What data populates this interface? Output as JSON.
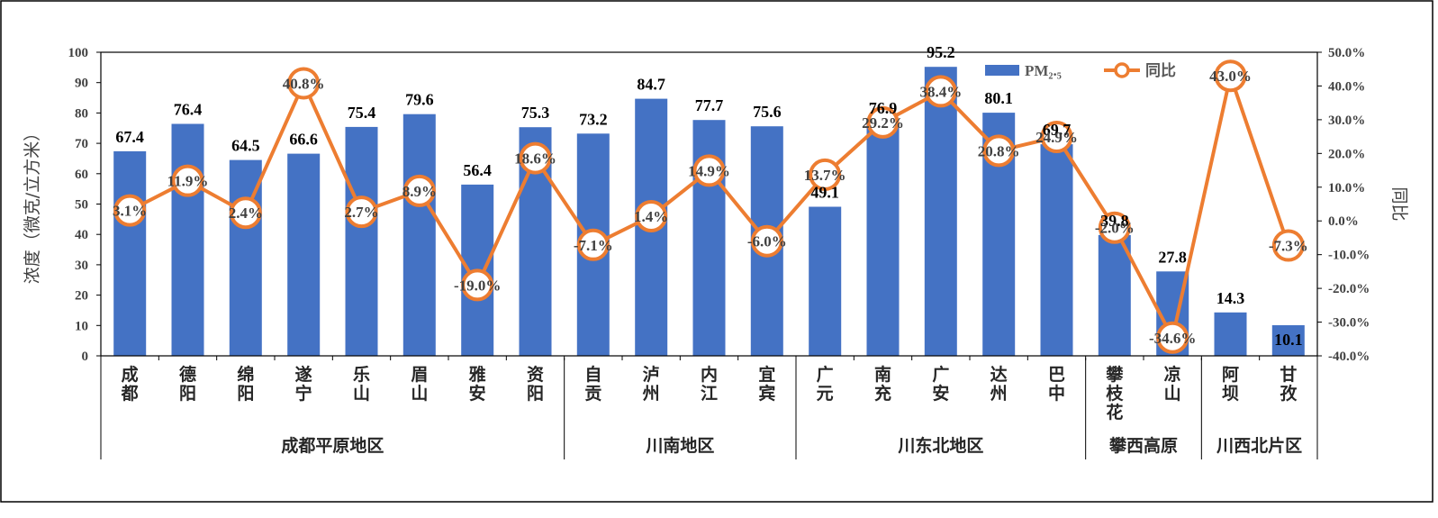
{
  "chart_data": {
    "type": "bar",
    "ylabel": "浓度（微克/立方米）",
    "y2label": "同比",
    "ylim": [
      0,
      100
    ],
    "yticks": [
      "0",
      "10",
      "20",
      "30",
      "40",
      "50",
      "60",
      "70",
      "80",
      "90",
      "100"
    ],
    "y2lim": [
      -40,
      50
    ],
    "y2ticks": [
      "-40.0%",
      "-30.0%",
      "-20.0%",
      "-10.0%",
      "0.0%",
      "10.0%",
      "20.0%",
      "30.0%",
      "40.0%",
      "50.0%"
    ],
    "categories": [
      "成都",
      "德阳",
      "绵阳",
      "遂宁",
      "乐山",
      "眉山",
      "雅安",
      "资阳",
      "自贡",
      "泸州",
      "内江",
      "宜宾",
      "广元",
      "南充",
      "广安",
      "达州",
      "巴中",
      "攀枝花",
      "凉山",
      "阿坝",
      "甘孜"
    ],
    "groups": [
      {
        "name": "成都平原地区",
        "count": 8
      },
      {
        "name": "川南地区",
        "count": 4
      },
      {
        "name": "川东北地区",
        "count": 5
      },
      {
        "name": "攀西高原",
        "count": 2
      },
      {
        "name": "川西北片区",
        "count": 2
      }
    ],
    "series": [
      {
        "name": "PM₂.₅",
        "type": "bar",
        "color": "#4472C4",
        "values": [
          67.4,
          76.4,
          64.5,
          66.6,
          75.4,
          79.6,
          56.4,
          75.3,
          73.2,
          84.7,
          77.7,
          75.6,
          49.1,
          76.9,
          95.2,
          80.1,
          69.7,
          39.8,
          27.8,
          14.3,
          10.1
        ],
        "labels": [
          "67.4",
          "76.4",
          "64.5",
          "66.6",
          "75.4",
          "79.6",
          "56.4",
          "75.3",
          "73.2",
          "84.7",
          "77.7",
          "75.6",
          "49.1",
          "76.9",
          "95.2",
          "80.1",
          "69.7",
          "39.8",
          "27.8",
          "14.3",
          "10.1"
        ]
      },
      {
        "name": "同比",
        "type": "line",
        "axis": "right",
        "color": "#ED7D31",
        "values": [
          3.1,
          11.9,
          2.4,
          40.8,
          2.7,
          8.9,
          -19.0,
          18.6,
          -7.1,
          1.4,
          14.9,
          -6.0,
          13.7,
          29.2,
          38.4,
          20.8,
          24.9,
          -2.0,
          -34.6,
          43.0,
          -7.3
        ],
        "labels": [
          "3.1%",
          "11.9%",
          "2.4%",
          "40.8%",
          "2.7%",
          "8.9%",
          "-19.0%",
          "18.6%",
          "-7.1%",
          "1.4%",
          "14.9%",
          "-6.0%",
          "13.7%",
          "29.2%",
          "38.4%",
          "20.8%",
          "24.9%",
          "-2.0%",
          "-34.6%",
          "43.0%",
          "-7.3%"
        ]
      }
    ],
    "legend": "top-right",
    "grid": false
  }
}
